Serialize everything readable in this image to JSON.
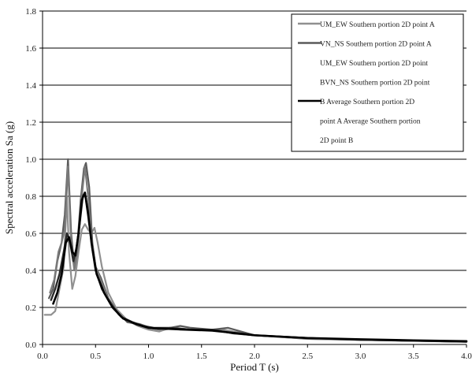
{
  "chart_data": {
    "type": "line",
    "xlabel": "Period T (s)",
    "ylabel": "Spectral acceleration Sa (g)",
    "xlim": [
      0.0,
      4.0
    ],
    "ylim": [
      0.0,
      1.8
    ],
    "x_ticks": [
      "0.0",
      "0.5",
      "1.0",
      "1.5",
      "2.0",
      "2.5",
      "3.0",
      "3.5",
      "4.0"
    ],
    "y_ticks": [
      "0.0",
      "0.2",
      "0.4",
      "0.6",
      "0.8",
      "1.0",
      "1.2",
      "1.4",
      "1.6",
      "1.8"
    ],
    "grid": "horizontal",
    "legend_position": "top-right",
    "legend_lines": [
      "UM_EW Southern portion 2D point A",
      "VN_NS Southern portion 2D point A",
      "UM_EW Southern portion 2D point",
      "BVN_NS Southern portion 2D point",
      "B Average Southern portion 2D",
      "point A Average Southern portion",
      "2D point B"
    ],
    "series": [
      {
        "color": "#909090",
        "width": 2.2,
        "points": [
          [
            0.02,
            0.16
          ],
          [
            0.08,
            0.16
          ],
          [
            0.12,
            0.18
          ],
          [
            0.16,
            0.3
          ],
          [
            0.2,
            0.42
          ],
          [
            0.23,
            0.8
          ],
          [
            0.25,
            0.5
          ],
          [
            0.28,
            0.3
          ],
          [
            0.31,
            0.37
          ],
          [
            0.34,
            0.5
          ],
          [
            0.37,
            0.62
          ],
          [
            0.4,
            0.65
          ],
          [
            0.43,
            0.62
          ],
          [
            0.46,
            0.6
          ],
          [
            0.49,
            0.63
          ],
          [
            0.52,
            0.55
          ],
          [
            0.56,
            0.42
          ],
          [
            0.62,
            0.28
          ],
          [
            0.7,
            0.19
          ],
          [
            0.8,
            0.13
          ],
          [
            0.9,
            0.1
          ],
          [
            1.0,
            0.08
          ],
          [
            1.1,
            0.07
          ],
          [
            1.2,
            0.09
          ],
          [
            1.3,
            0.08
          ],
          [
            1.5,
            0.08
          ],
          [
            1.7,
            0.08
          ],
          [
            2.0,
            0.05
          ],
          [
            2.5,
            0.03
          ],
          [
            3.0,
            0.025
          ],
          [
            3.5,
            0.02
          ],
          [
            4.0,
            0.015
          ]
        ]
      },
      {
        "color": "#5a5a5a",
        "width": 2.2,
        "points": [
          [
            0.06,
            0.25
          ],
          [
            0.1,
            0.3
          ],
          [
            0.14,
            0.45
          ],
          [
            0.18,
            0.55
          ],
          [
            0.21,
            0.7
          ],
          [
            0.24,
            1.0
          ],
          [
            0.27,
            0.6
          ],
          [
            0.3,
            0.42
          ],
          [
            0.33,
            0.55
          ],
          [
            0.36,
            0.78
          ],
          [
            0.39,
            0.95
          ],
          [
            0.41,
            0.98
          ],
          [
            0.44,
            0.85
          ],
          [
            0.47,
            0.55
          ],
          [
            0.5,
            0.42
          ],
          [
            0.55,
            0.36
          ],
          [
            0.62,
            0.25
          ],
          [
            0.7,
            0.18
          ],
          [
            0.8,
            0.12
          ],
          [
            0.9,
            0.11
          ],
          [
            1.0,
            0.09
          ],
          [
            1.1,
            0.08
          ],
          [
            1.2,
            0.09
          ],
          [
            1.3,
            0.1
          ],
          [
            1.4,
            0.09
          ],
          [
            1.6,
            0.08
          ],
          [
            1.75,
            0.09
          ],
          [
            2.0,
            0.05
          ],
          [
            2.5,
            0.035
          ],
          [
            3.0,
            0.025
          ],
          [
            3.5,
            0.02
          ],
          [
            4.0,
            0.015
          ]
        ]
      },
      {
        "color": "#7a7a7a",
        "width": 2.2,
        "points": [
          [
            0.07,
            0.28
          ],
          [
            0.11,
            0.35
          ],
          [
            0.15,
            0.5
          ],
          [
            0.18,
            0.55
          ],
          [
            0.21,
            0.62
          ],
          [
            0.24,
            0.96
          ],
          [
            0.27,
            0.55
          ],
          [
            0.3,
            0.4
          ],
          [
            0.33,
            0.5
          ],
          [
            0.37,
            0.8
          ],
          [
            0.4,
            0.96
          ],
          [
            0.43,
            0.8
          ],
          [
            0.46,
            0.58
          ],
          [
            0.5,
            0.42
          ],
          [
            0.56,
            0.33
          ],
          [
            0.63,
            0.23
          ],
          [
            0.72,
            0.16
          ],
          [
            0.82,
            0.12
          ],
          [
            0.92,
            0.11
          ],
          [
            1.02,
            0.09
          ],
          [
            1.15,
            0.08
          ],
          [
            1.25,
            0.09
          ],
          [
            1.4,
            0.08
          ],
          [
            1.6,
            0.08
          ],
          [
            1.8,
            0.06
          ],
          [
            2.0,
            0.05
          ],
          [
            2.5,
            0.03
          ],
          [
            3.0,
            0.025
          ],
          [
            3.5,
            0.02
          ],
          [
            4.0,
            0.015
          ]
        ]
      },
      {
        "color": "#2a2a2a",
        "width": 2.4,
        "points": [
          [
            0.08,
            0.24
          ],
          [
            0.12,
            0.3
          ],
          [
            0.16,
            0.38
          ],
          [
            0.2,
            0.5
          ],
          [
            0.23,
            0.6
          ],
          [
            0.26,
            0.55
          ],
          [
            0.29,
            0.45
          ],
          [
            0.32,
            0.52
          ],
          [
            0.35,
            0.65
          ],
          [
            0.38,
            0.8
          ],
          [
            0.4,
            0.82
          ],
          [
            0.43,
            0.72
          ],
          [
            0.46,
            0.55
          ],
          [
            0.5,
            0.4
          ],
          [
            0.56,
            0.3
          ],
          [
            0.64,
            0.22
          ],
          [
            0.74,
            0.15
          ],
          [
            0.85,
            0.12
          ],
          [
            0.95,
            0.1
          ],
          [
            1.05,
            0.09
          ],
          [
            1.2,
            0.09
          ],
          [
            1.4,
            0.08
          ],
          [
            1.6,
            0.08
          ],
          [
            1.8,
            0.06
          ],
          [
            2.0,
            0.05
          ],
          [
            2.5,
            0.035
          ],
          [
            3.0,
            0.025
          ],
          [
            3.5,
            0.02
          ],
          [
            4.0,
            0.015
          ]
        ]
      },
      {
        "color": "#000000",
        "width": 2.6,
        "points": [
          [
            0.1,
            0.22
          ],
          [
            0.14,
            0.28
          ],
          [
            0.18,
            0.38
          ],
          [
            0.22,
            0.55
          ],
          [
            0.25,
            0.58
          ],
          [
            0.28,
            0.5
          ],
          [
            0.31,
            0.48
          ],
          [
            0.34,
            0.6
          ],
          [
            0.37,
            0.78
          ],
          [
            0.4,
            0.82
          ],
          [
            0.43,
            0.7
          ],
          [
            0.47,
            0.52
          ],
          [
            0.51,
            0.38
          ],
          [
            0.58,
            0.28
          ],
          [
            0.66,
            0.2
          ],
          [
            0.76,
            0.14
          ],
          [
            0.88,
            0.11
          ],
          [
            1.0,
            0.09
          ],
          [
            1.15,
            0.085
          ],
          [
            1.35,
            0.08
          ],
          [
            1.6,
            0.075
          ],
          [
            1.85,
            0.06
          ],
          [
            2.0,
            0.05
          ],
          [
            2.5,
            0.035
          ],
          [
            3.0,
            0.028
          ],
          [
            3.5,
            0.022
          ],
          [
            4.0,
            0.018
          ]
        ]
      }
    ],
    "legend_markers": [
      {
        "color": "#909090",
        "line_index": 0
      },
      {
        "color": "#5a5a5a",
        "line_index": 1
      },
      {
        "color": "#000000",
        "line_index": 4
      }
    ]
  }
}
